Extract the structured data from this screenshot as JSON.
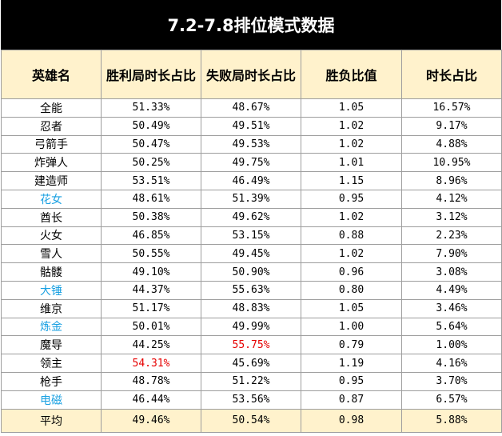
{
  "title": "7.2-7.8排位模式数据",
  "headers": [
    "英雄名",
    "胜利局时长占比",
    "失败局时长占比",
    "胜负比值",
    "时长占比"
  ],
  "rows": [
    {
      "name": "全能",
      "win": "51.33%",
      "lose": "48.67%",
      "ratio": "1.05",
      "share": "16.57%"
    },
    {
      "name": "忍者",
      "win": "50.49%",
      "lose": "49.51%",
      "ratio": "1.02",
      "share": "9.17%"
    },
    {
      "name": "弓箭手",
      "win": "50.47%",
      "lose": "49.53%",
      "ratio": "1.02",
      "share": "4.88%"
    },
    {
      "name": "炸弹人",
      "win": "50.25%",
      "lose": "49.75%",
      "ratio": "1.01",
      "share": "10.95%"
    },
    {
      "name": "建造师",
      "win": "53.51%",
      "lose": "46.49%",
      "ratio": "1.15",
      "share": "8.96%"
    },
    {
      "name": "花女",
      "win": "48.61%",
      "lose": "51.39%",
      "ratio": "0.95",
      "share": "4.12%"
    },
    {
      "name": "酋长",
      "win": "50.38%",
      "lose": "49.62%",
      "ratio": "1.02",
      "share": "3.12%"
    },
    {
      "name": "火女",
      "win": "46.85%",
      "lose": "53.15%",
      "ratio": "0.88",
      "share": "2.23%"
    },
    {
      "name": "雪人",
      "win": "50.55%",
      "lose": "49.45%",
      "ratio": "1.02",
      "share": "7.90%"
    },
    {
      "name": "骷髅",
      "win": "49.10%",
      "lose": "50.90%",
      "ratio": "0.96",
      "share": "3.08%"
    },
    {
      "name": "大锤",
      "win": "44.37%",
      "lose": "55.63%",
      "ratio": "0.80",
      "share": "4.49%"
    },
    {
      "name": "维京",
      "win": "51.17%",
      "lose": "48.83%",
      "ratio": "1.05",
      "share": "3.46%"
    },
    {
      "name": "炼金",
      "win": "50.01%",
      "lose": "49.99%",
      "ratio": "1.00",
      "share": "5.64%"
    },
    {
      "name": "魔导",
      "win": "44.25%",
      "lose": "55.75%",
      "ratio": "0.79",
      "share": "1.00%"
    },
    {
      "name": "领主",
      "win": "54.31%",
      "lose": "45.69%",
      "ratio": "1.19",
      "share": "4.16%"
    },
    {
      "name": "枪手",
      "win": "48.78%",
      "lose": "51.22%",
      "ratio": "0.95",
      "share": "3.70%"
    },
    {
      "name": "电磁",
      "win": "46.44%",
      "lose": "53.56%",
      "ratio": "0.87",
      "share": "6.57%"
    }
  ],
  "average": {
    "name": "平均",
    "win": "49.46%",
    "lose": "50.54%",
    "ratio": "0.98",
    "share": "5.88%"
  },
  "colors": {
    "highlight_name": "#1ba1e2",
    "highlight_value": "#e60000",
    "header_bg": "#fff2cc",
    "title_bg": "#000000"
  },
  "highlighted_names": [
    "花女",
    "大锤",
    "炼金",
    "电磁"
  ],
  "highlighted_values": [
    {
      "row": "领主",
      "col": "win"
    },
    {
      "row": "魔导",
      "col": "lose"
    }
  ]
}
